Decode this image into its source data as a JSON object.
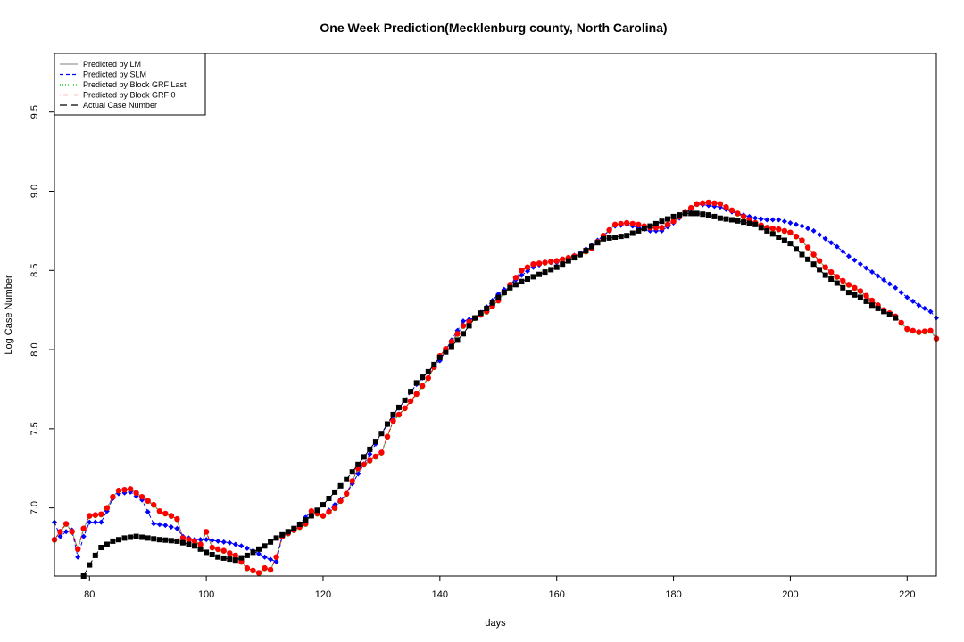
{
  "chart_data": {
    "type": "scatter",
    "title": "One Week Prediction(Mecklenburg county, North Carolina)",
    "xlabel": "days",
    "ylabel": "Log Case Number",
    "xlim": [
      74,
      225
    ],
    "ylim": [
      6.57,
      9.87
    ],
    "x_ticks": [
      80,
      100,
      120,
      140,
      160,
      180,
      200,
      220
    ],
    "y_ticks": [
      7.0,
      7.5,
      8.0,
      8.5,
      9.0,
      9.5
    ],
    "x_tick_labels": [
      "80",
      "100",
      "120",
      "140",
      "160",
      "180",
      "200",
      "220"
    ],
    "y_tick_labels": [
      "7.0",
      "7.5",
      "8.0",
      "8.5",
      "9.0",
      "9.5"
    ],
    "grid": false,
    "legend_position": "top-left",
    "legend": [
      {
        "name": "Predicted by LM",
        "color": "#999999",
        "line": "solid",
        "marker": "dot"
      },
      {
        "name": "Predicted by SLM",
        "color": "#0000ff",
        "line": "dashed",
        "marker": "diamond"
      },
      {
        "name": "Predicted by Block GRF Last",
        "color": "#00cc00",
        "line": "dotted",
        "marker": "dot"
      },
      {
        "name": "Predicted by Block GRF 0",
        "color": "#ff0000",
        "line": "dotdash",
        "marker": "dot"
      },
      {
        "name": "Actual Case Number",
        "color": "#000000",
        "line": "longdash",
        "marker": "square"
      }
    ],
    "series_keypoints": {
      "actual": [
        [
          79,
          6.57
        ],
        [
          80,
          6.64
        ],
        [
          81,
          6.7
        ],
        [
          82,
          6.75
        ],
        [
          84,
          6.79
        ],
        [
          86,
          6.81
        ],
        [
          88,
          6.82
        ],
        [
          90,
          6.81
        ],
        [
          92,
          6.8
        ],
        [
          95,
          6.79
        ],
        [
          98,
          6.76
        ],
        [
          100,
          6.72
        ],
        [
          102,
          6.69
        ],
        [
          105,
          6.67
        ],
        [
          107,
          6.7
        ],
        [
          110,
          6.76
        ],
        [
          112,
          6.81
        ],
        [
          115,
          6.87
        ],
        [
          118,
          6.95
        ],
        [
          120,
          7.02
        ],
        [
          124,
          7.18
        ],
        [
          128,
          7.37
        ],
        [
          130,
          7.47
        ],
        [
          132,
          7.59
        ],
        [
          134,
          7.68
        ],
        [
          136,
          7.79
        ],
        [
          138,
          7.86
        ],
        [
          140,
          7.95
        ],
        [
          142,
          8.02
        ],
        [
          144,
          8.1
        ],
        [
          146,
          8.2
        ],
        [
          148,
          8.26
        ],
        [
          150,
          8.33
        ],
        [
          152,
          8.39
        ],
        [
          154,
          8.43
        ],
        [
          156,
          8.46
        ],
        [
          158,
          8.49
        ],
        [
          160,
          8.52
        ],
        [
          162,
          8.56
        ],
        [
          164,
          8.6
        ],
        [
          166,
          8.65
        ],
        [
          168,
          8.7
        ],
        [
          170,
          8.71
        ],
        [
          172,
          8.72
        ],
        [
          174,
          8.75
        ],
        [
          176,
          8.78
        ],
        [
          178,
          8.81
        ],
        [
          180,
          8.84
        ],
        [
          182,
          8.86
        ],
        [
          184,
          8.86
        ],
        [
          186,
          8.85
        ],
        [
          188,
          8.83
        ],
        [
          190,
          8.82
        ],
        [
          194,
          8.79
        ],
        [
          196,
          8.75
        ],
        [
          198,
          8.71
        ],
        [
          200,
          8.67
        ],
        [
          202,
          8.6
        ],
        [
          204,
          8.54
        ],
        [
          206,
          8.47
        ],
        [
          208,
          8.42
        ],
        [
          210,
          8.36
        ],
        [
          212,
          8.33
        ],
        [
          214,
          8.28
        ],
        [
          216,
          8.24
        ],
        [
          218,
          8.2
        ]
      ],
      "lm": [
        [
          74,
          6.8
        ],
        [
          76,
          6.9
        ],
        [
          77,
          6.85
        ],
        [
          78,
          6.74
        ],
        [
          79,
          6.87
        ],
        [
          80,
          6.95
        ],
        [
          82,
          6.96
        ],
        [
          83,
          7.0
        ],
        [
          84,
          7.07
        ],
        [
          85,
          7.11
        ],
        [
          87,
          7.12
        ],
        [
          89,
          7.07
        ],
        [
          91,
          7.02
        ],
        [
          92,
          6.98
        ],
        [
          94,
          6.95
        ],
        [
          95,
          6.93
        ],
        [
          96,
          6.81
        ],
        [
          98,
          6.79
        ],
        [
          99,
          6.77
        ],
        [
          100,
          6.85
        ],
        [
          101,
          6.75
        ],
        [
          103,
          6.73
        ],
        [
          105,
          6.7
        ],
        [
          107,
          6.62
        ],
        [
          109,
          6.59
        ],
        [
          110,
          6.62
        ],
        [
          111,
          6.61
        ],
        [
          112,
          6.69
        ],
        [
          113,
          6.82
        ],
        [
          115,
          6.86
        ],
        [
          117,
          6.9
        ],
        [
          118,
          6.98
        ],
        [
          120,
          6.95
        ],
        [
          122,
          7.0
        ],
        [
          124,
          7.09
        ],
        [
          126,
          7.25
        ],
        [
          128,
          7.3
        ],
        [
          130,
          7.35
        ],
        [
          132,
          7.55
        ],
        [
          134,
          7.63
        ],
        [
          136,
          7.72
        ],
        [
          138,
          7.82
        ],
        [
          140,
          7.96
        ],
        [
          142,
          8.05
        ],
        [
          144,
          8.15
        ],
        [
          146,
          8.2
        ],
        [
          148,
          8.24
        ],
        [
          150,
          8.31
        ],
        [
          152,
          8.41
        ],
        [
          154,
          8.5
        ],
        [
          156,
          8.54
        ],
        [
          158,
          8.55
        ],
        [
          160,
          8.56
        ],
        [
          162,
          8.58
        ],
        [
          164,
          8.6
        ],
        [
          166,
          8.64
        ],
        [
          168,
          8.72
        ],
        [
          170,
          8.79
        ],
        [
          172,
          8.8
        ],
        [
          174,
          8.79
        ],
        [
          176,
          8.77
        ],
        [
          178,
          8.77
        ],
        [
          180,
          8.81
        ],
        [
          182,
          8.87
        ],
        [
          184,
          8.92
        ],
        [
          186,
          8.93
        ],
        [
          188,
          8.92
        ],
        [
          190,
          8.88
        ],
        [
          192,
          8.84
        ],
        [
          194,
          8.8
        ],
        [
          196,
          8.77
        ],
        [
          198,
          8.76
        ],
        [
          200,
          8.74
        ],
        [
          202,
          8.69
        ],
        [
          204,
          8.6
        ],
        [
          206,
          8.52
        ],
        [
          208,
          8.46
        ],
        [
          210,
          8.41
        ],
        [
          212,
          8.37
        ],
        [
          214,
          8.31
        ],
        [
          216,
          8.25
        ],
        [
          218,
          8.21
        ],
        [
          220,
          8.13
        ],
        [
          222,
          8.11
        ],
        [
          224,
          8.12
        ],
        [
          225,
          8.07
        ]
      ],
      "slm": [
        [
          74,
          6.91
        ],
        [
          75,
          6.82
        ],
        [
          76,
          6.85
        ],
        [
          77,
          6.86
        ],
        [
          78,
          6.69
        ],
        [
          79,
          6.82
        ],
        [
          80,
          6.91
        ],
        [
          82,
          6.91
        ],
        [
          83,
          6.98
        ],
        [
          84,
          7.06
        ],
        [
          85,
          7.09
        ],
        [
          87,
          7.1
        ],
        [
          89,
          7.05
        ],
        [
          91,
          6.9
        ],
        [
          93,
          6.89
        ],
        [
          95,
          6.87
        ],
        [
          96,
          6.82
        ],
        [
          98,
          6.8
        ],
        [
          100,
          6.8
        ],
        [
          102,
          6.79
        ],
        [
          104,
          6.78
        ],
        [
          106,
          6.76
        ],
        [
          108,
          6.73
        ],
        [
          110,
          6.69
        ],
        [
          112,
          6.66
        ],
        [
          113,
          6.82
        ],
        [
          115,
          6.86
        ],
        [
          118,
          6.98
        ],
        [
          120,
          6.95
        ],
        [
          124,
          7.09
        ],
        [
          128,
          7.34
        ],
        [
          130,
          7.47
        ],
        [
          132,
          7.58
        ],
        [
          134,
          7.68
        ],
        [
          136,
          7.78
        ],
        [
          138,
          7.86
        ],
        [
          140,
          7.93
        ],
        [
          142,
          8.06
        ],
        [
          144,
          8.18
        ],
        [
          146,
          8.2
        ],
        [
          148,
          8.27
        ],
        [
          150,
          8.35
        ],
        [
          152,
          8.41
        ],
        [
          154,
          8.47
        ],
        [
          156,
          8.52
        ],
        [
          158,
          8.55
        ],
        [
          160,
          8.55
        ],
        [
          162,
          8.58
        ],
        [
          164,
          8.61
        ],
        [
          166,
          8.66
        ],
        [
          168,
          8.72
        ],
        [
          170,
          8.78
        ],
        [
          172,
          8.79
        ],
        [
          174,
          8.77
        ],
        [
          176,
          8.75
        ],
        [
          178,
          8.75
        ],
        [
          180,
          8.8
        ],
        [
          182,
          8.86
        ],
        [
          184,
          8.92
        ],
        [
          186,
          8.91
        ],
        [
          188,
          8.9
        ],
        [
          190,
          8.87
        ],
        [
          192,
          8.85
        ],
        [
          194,
          8.83
        ],
        [
          196,
          8.82
        ],
        [
          198,
          8.82
        ],
        [
          200,
          8.8
        ],
        [
          202,
          8.78
        ],
        [
          204,
          8.75
        ],
        [
          206,
          8.7
        ],
        [
          208,
          8.65
        ],
        [
          210,
          8.59
        ],
        [
          212,
          8.54
        ],
        [
          214,
          8.49
        ],
        [
          216,
          8.44
        ],
        [
          218,
          8.39
        ],
        [
          220,
          8.33
        ],
        [
          222,
          8.28
        ],
        [
          224,
          8.24
        ],
        [
          225,
          8.2
        ]
      ]
    }
  }
}
